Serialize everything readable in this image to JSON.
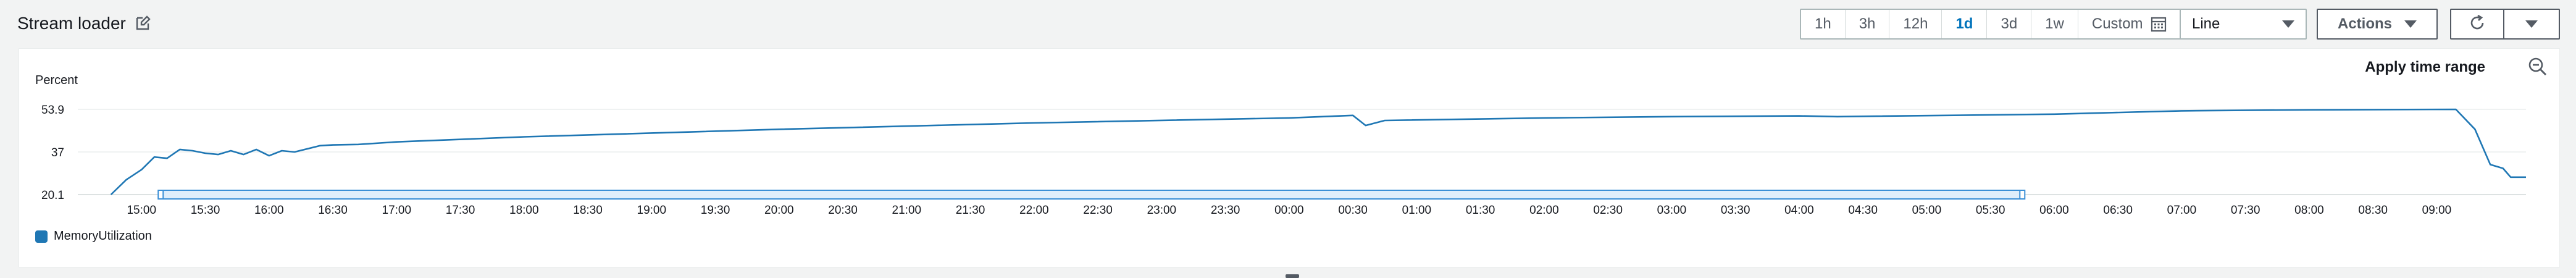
{
  "header": {
    "title": "Stream loader",
    "edit_icon": "edit-icon"
  },
  "toolbar": {
    "ranges": [
      {
        "label": "1h",
        "active": false
      },
      {
        "label": "3h",
        "active": false
      },
      {
        "label": "12h",
        "active": false
      },
      {
        "label": "1d",
        "active": true
      },
      {
        "label": "3d",
        "active": false
      },
      {
        "label": "1w",
        "active": false
      }
    ],
    "custom_label": "Custom",
    "custom_icon": "calendar-icon",
    "chart_type_value": "Line",
    "actions_label": "Actions",
    "refresh_icon": "refresh-icon",
    "dropdown_icon": "caret-down-icon"
  },
  "panel": {
    "apply_label": "Apply time range",
    "zoom_icon": "zoom-out-icon"
  },
  "colors": {
    "series": "#1f77b4",
    "active_range": "#0073bb",
    "selection": "#3a8fd6"
  },
  "chart_data": {
    "type": "line",
    "ylabel": "Percent",
    "y_ticks": [
      "53.9",
      "37",
      "20.1"
    ],
    "ylim": [
      20.1,
      53.9
    ],
    "x_ticks": [
      "15:00",
      "15:30",
      "16:00",
      "16:30",
      "17:00",
      "17:30",
      "18:00",
      "18:30",
      "19:00",
      "19:30",
      "20:00",
      "20:30",
      "21:00",
      "21:30",
      "22:00",
      "22:30",
      "23:00",
      "23:30",
      "00:00",
      "00:30",
      "01:00",
      "01:30",
      "02:00",
      "02:30",
      "03:00",
      "03:30",
      "04:00",
      "04:30",
      "05:00",
      "05:30",
      "06:00",
      "06:30",
      "07:00",
      "07:30",
      "08:00",
      "08:30",
      "09:00"
    ],
    "x_start_hours": 14.5,
    "x_end_hours": 33.7,
    "selection_hours": [
      15.15,
      29.75
    ],
    "series": [
      {
        "name": "MemoryUtilization",
        "points": [
          [
            14.76,
            20.1
          ],
          [
            14.88,
            26.0
          ],
          [
            15.0,
            30.0
          ],
          [
            15.1,
            35.0
          ],
          [
            15.2,
            34.5
          ],
          [
            15.3,
            38.0
          ],
          [
            15.4,
            37.5
          ],
          [
            15.5,
            36.5
          ],
          [
            15.6,
            36.0
          ],
          [
            15.7,
            37.5
          ],
          [
            15.8,
            36.0
          ],
          [
            15.9,
            38.0
          ],
          [
            16.0,
            35.5
          ],
          [
            16.1,
            37.5
          ],
          [
            16.2,
            37.0
          ],
          [
            16.4,
            39.5
          ],
          [
            16.5,
            39.8
          ],
          [
            16.7,
            40.0
          ],
          [
            17.0,
            41.0
          ],
          [
            18.0,
            43.0
          ],
          [
            20.0,
            46.0
          ],
          [
            22.0,
            48.5
          ],
          [
            24.0,
            50.5
          ],
          [
            24.5,
            51.5
          ],
          [
            24.6,
            47.5
          ],
          [
            24.75,
            49.5
          ],
          [
            26.0,
            50.5
          ],
          [
            27.0,
            51.0
          ],
          [
            28.0,
            51.3
          ],
          [
            28.3,
            51.0
          ],
          [
            30.0,
            52.0
          ],
          [
            31.0,
            53.3
          ],
          [
            32.0,
            53.7
          ],
          [
            33.15,
            53.9
          ],
          [
            33.3,
            46.0
          ],
          [
            33.42,
            32.0
          ],
          [
            33.52,
            30.5
          ],
          [
            33.58,
            27.0
          ],
          [
            33.7,
            27.0
          ]
        ]
      }
    ],
    "legend_position": "bottom-left",
    "grid": true
  }
}
